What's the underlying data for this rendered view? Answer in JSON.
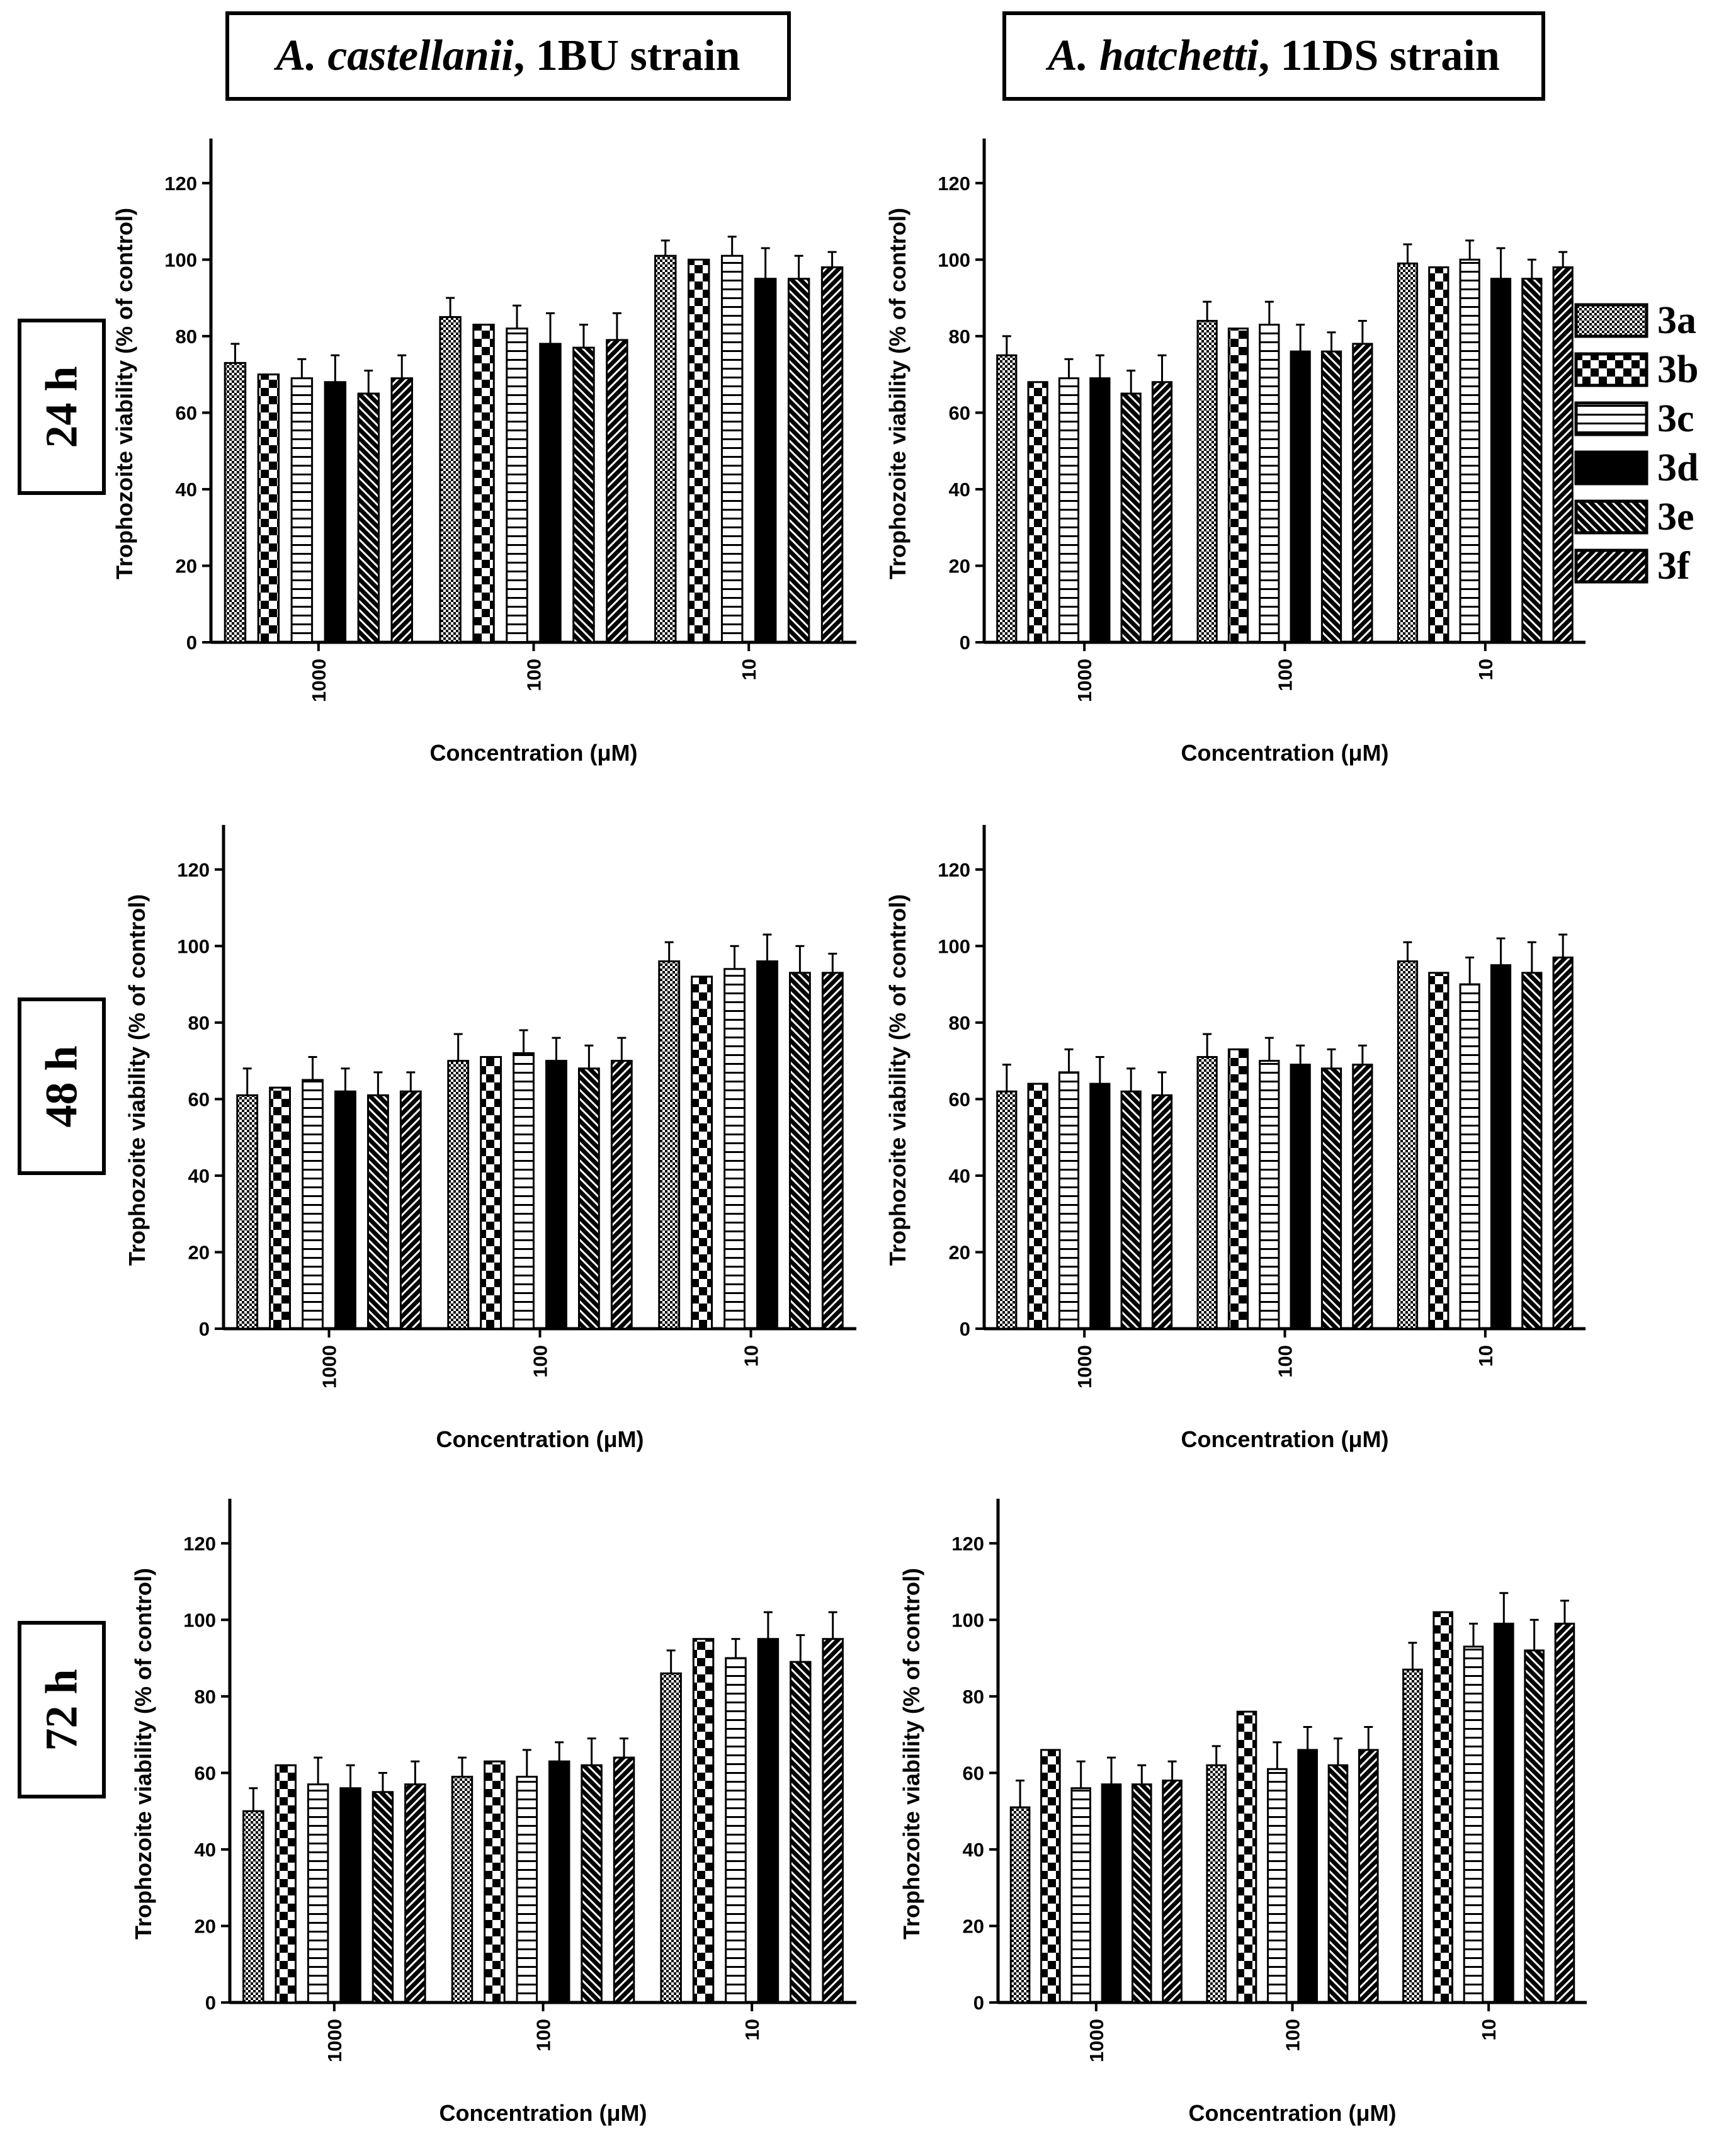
{
  "headers": {
    "left": {
      "species": "A. castellanii",
      "strain": ", 1BU strain"
    },
    "right": {
      "species": "A. hatchetti",
      "strain": ", 11DS strain"
    }
  },
  "rows": [
    "24 h",
    "48 h",
    "72 h"
  ],
  "legend": [
    {
      "key": "3a",
      "pattern": "checker-fine"
    },
    {
      "key": "3b",
      "pattern": "checker-coarse"
    },
    {
      "key": "3c",
      "pattern": "horizontal-lines"
    },
    {
      "key": "3d",
      "pattern": "solid-black"
    },
    {
      "key": "3e",
      "pattern": "diagonal-back"
    },
    {
      "key": "3f",
      "pattern": "diagonal-forward"
    }
  ],
  "chart_data": [
    {
      "id": "c-24h-castellanii",
      "type": "bar",
      "row": "24 h",
      "strain": "A. castellanii, 1BU strain",
      "categories": [
        "1000",
        "100",
        "10"
      ],
      "xlabel": "Concentration (μM)",
      "ylabel": "Trophozoite viability (% of control)",
      "ylim": [
        0,
        130
      ],
      "yticks": [
        "0",
        "20",
        "40",
        "60",
        "80",
        "100",
        "120"
      ],
      "series": [
        {
          "name": "3a",
          "values": [
            73,
            85,
            101
          ],
          "errors": [
            5,
            5,
            4
          ]
        },
        {
          "name": "3b",
          "values": [
            70,
            83,
            100
          ],
          "errors": [
            0,
            0,
            0
          ]
        },
        {
          "name": "3c",
          "values": [
            69,
            82,
            101
          ],
          "errors": [
            5,
            6,
            5
          ]
        },
        {
          "name": "3d",
          "values": [
            68,
            78,
            95
          ],
          "errors": [
            7,
            8,
            8
          ]
        },
        {
          "name": "3e",
          "values": [
            65,
            77,
            95
          ],
          "errors": [
            6,
            6,
            6
          ]
        },
        {
          "name": "3f",
          "values": [
            69,
            79,
            98
          ],
          "errors": [
            6,
            7,
            4
          ]
        }
      ]
    },
    {
      "id": "c-24h-hatchetti",
      "type": "bar",
      "row": "24 h",
      "strain": "A. hatchetti, 11DS strain",
      "categories": [
        "1000",
        "100",
        "10"
      ],
      "xlabel": "Concentration (μM)",
      "ylabel": "Trophozoite viability (% of control)",
      "ylim": [
        0,
        130
      ],
      "yticks": [
        "0",
        "20",
        "40",
        "60",
        "80",
        "100",
        "120"
      ],
      "series": [
        {
          "name": "3a",
          "values": [
            75,
            84,
            99
          ],
          "errors": [
            5,
            5,
            5
          ]
        },
        {
          "name": "3b",
          "values": [
            68,
            82,
            98
          ],
          "errors": [
            0,
            0,
            0
          ]
        },
        {
          "name": "3c",
          "values": [
            69,
            83,
            100
          ],
          "errors": [
            5,
            6,
            5
          ]
        },
        {
          "name": "3d",
          "values": [
            69,
            76,
            95
          ],
          "errors": [
            6,
            7,
            8
          ]
        },
        {
          "name": "3e",
          "values": [
            65,
            76,
            95
          ],
          "errors": [
            6,
            5,
            5
          ]
        },
        {
          "name": "3f",
          "values": [
            68,
            78,
            98
          ],
          "errors": [
            7,
            6,
            4
          ]
        }
      ]
    },
    {
      "id": "c-48h-castellanii",
      "type": "bar",
      "row": "48 h",
      "strain": "A. castellanii, 1BU strain",
      "categories": [
        "1000",
        "100",
        "10"
      ],
      "xlabel": "Concentration (μM)",
      "ylabel": "Trophozoite viability (% of control)",
      "ylim": [
        0,
        130
      ],
      "yticks": [
        "0",
        "20",
        "40",
        "60",
        "80",
        "100",
        "120"
      ],
      "series": [
        {
          "name": "3a",
          "values": [
            61,
            70,
            96
          ],
          "errors": [
            7,
            7,
            5
          ]
        },
        {
          "name": "3b",
          "values": [
            63,
            71,
            92
          ],
          "errors": [
            0,
            0,
            0
          ]
        },
        {
          "name": "3c",
          "values": [
            65,
            72,
            94
          ],
          "errors": [
            6,
            6,
            6
          ]
        },
        {
          "name": "3d",
          "values": [
            62,
            70,
            96
          ],
          "errors": [
            6,
            6,
            7
          ]
        },
        {
          "name": "3e",
          "values": [
            61,
            68,
            93
          ],
          "errors": [
            6,
            6,
            7
          ]
        },
        {
          "name": "3f",
          "values": [
            62,
            70,
            93
          ],
          "errors": [
            5,
            6,
            5
          ]
        }
      ]
    },
    {
      "id": "c-48h-hatchetti",
      "type": "bar",
      "row": "48 h",
      "strain": "A. hatchetti, 11DS strain",
      "categories": [
        "1000",
        "100",
        "10"
      ],
      "xlabel": "Concentration (μM)",
      "ylabel": "Trophozoite viability (% of control)",
      "ylim": [
        0,
        130
      ],
      "yticks": [
        "0",
        "20",
        "40",
        "60",
        "80",
        "100",
        "120"
      ],
      "series": [
        {
          "name": "3a",
          "values": [
            62,
            71,
            96
          ],
          "errors": [
            7,
            6,
            5
          ]
        },
        {
          "name": "3b",
          "values": [
            64,
            73,
            93
          ],
          "errors": [
            0,
            0,
            0
          ]
        },
        {
          "name": "3c",
          "values": [
            67,
            70,
            90
          ],
          "errors": [
            6,
            6,
            7
          ]
        },
        {
          "name": "3d",
          "values": [
            64,
            69,
            95
          ],
          "errors": [
            7,
            5,
            7
          ]
        },
        {
          "name": "3e",
          "values": [
            62,
            68,
            93
          ],
          "errors": [
            6,
            5,
            8
          ]
        },
        {
          "name": "3f",
          "values": [
            61,
            69,
            97
          ],
          "errors": [
            6,
            5,
            6
          ]
        }
      ]
    },
    {
      "id": "c-72h-castellanii",
      "type": "bar",
      "row": "72 h",
      "strain": "A. castellanii, 1BU strain",
      "categories": [
        "1000",
        "100",
        "10"
      ],
      "xlabel": "Concentration (μM)",
      "ylabel": "Trophozoite viability (% of control)",
      "ylim": [
        0,
        130
      ],
      "yticks": [
        "0",
        "20",
        "40",
        "60",
        "80",
        "100",
        "120"
      ],
      "series": [
        {
          "name": "3a",
          "values": [
            50,
            59,
            86
          ],
          "errors": [
            6,
            5,
            6
          ]
        },
        {
          "name": "3b",
          "values": [
            62,
            63,
            95
          ],
          "errors": [
            0,
            0,
            0
          ]
        },
        {
          "name": "3c",
          "values": [
            57,
            59,
            90
          ],
          "errors": [
            7,
            7,
            5
          ]
        },
        {
          "name": "3d",
          "values": [
            56,
            63,
            95
          ],
          "errors": [
            6,
            5,
            7
          ]
        },
        {
          "name": "3e",
          "values": [
            55,
            62,
            89
          ],
          "errors": [
            5,
            7,
            7
          ]
        },
        {
          "name": "3f",
          "values": [
            57,
            64,
            95
          ],
          "errors": [
            6,
            5,
            7
          ]
        }
      ]
    },
    {
      "id": "c-72h-hatchetti",
      "type": "bar",
      "row": "72 h",
      "strain": "A. hatchetti, 11DS strain",
      "categories": [
        "1000",
        "100",
        "10"
      ],
      "xlabel": "Concentration (μM)",
      "ylabel": "Trophozoite viability (% of control)",
      "ylim": [
        0,
        130
      ],
      "yticks": [
        "0",
        "20",
        "40",
        "60",
        "80",
        "100",
        "120"
      ],
      "series": [
        {
          "name": "3a",
          "values": [
            51,
            62,
            87
          ],
          "errors": [
            7,
            5,
            7
          ]
        },
        {
          "name": "3b",
          "values": [
            66,
            76,
            102
          ],
          "errors": [
            0,
            0,
            0
          ]
        },
        {
          "name": "3c",
          "values": [
            56,
            61,
            93
          ],
          "errors": [
            7,
            7,
            6
          ]
        },
        {
          "name": "3d",
          "values": [
            57,
            66,
            99
          ],
          "errors": [
            7,
            6,
            8
          ]
        },
        {
          "name": "3e",
          "values": [
            57,
            62,
            92
          ],
          "errors": [
            5,
            7,
            8
          ]
        },
        {
          "name": "3f",
          "values": [
            58,
            66,
            99
          ],
          "errors": [
            5,
            6,
            6
          ]
        }
      ]
    }
  ]
}
